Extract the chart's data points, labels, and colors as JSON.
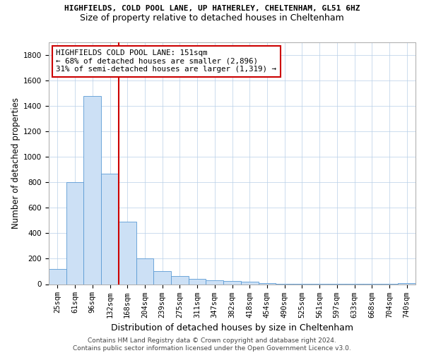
{
  "title_line1": "HIGHFIELDS, COLD POOL LANE, UP HATHERLEY, CHELTENHAM, GL51 6HZ",
  "title_line2": "Size of property relative to detached houses in Cheltenham",
  "xlabel": "Distribution of detached houses by size in Cheltenham",
  "ylabel": "Number of detached properties",
  "categories": [
    "25sqm",
    "61sqm",
    "96sqm",
    "132sqm",
    "168sqm",
    "204sqm",
    "239sqm",
    "275sqm",
    "311sqm",
    "347sqm",
    "382sqm",
    "418sqm",
    "454sqm",
    "490sqm",
    "525sqm",
    "561sqm",
    "597sqm",
    "633sqm",
    "668sqm",
    "704sqm",
    "740sqm"
  ],
  "values": [
    120,
    800,
    1480,
    870,
    490,
    205,
    100,
    65,
    40,
    28,
    25,
    18,
    8,
    5,
    3,
    2,
    2,
    2,
    1,
    2,
    10
  ],
  "bar_color": "#cce0f5",
  "bar_edge_color": "#5b9bd5",
  "vline_color": "#cc0000",
  "vline_x": 3.5,
  "ylim": [
    0,
    1900
  ],
  "yticks": [
    0,
    200,
    400,
    600,
    800,
    1000,
    1200,
    1400,
    1600,
    1800
  ],
  "annotation_box_text": "HIGHFIELDS COLD POOL LANE: 151sqm\n← 68% of detached houses are smaller (2,896)\n31% of semi-detached houses are larger (1,319) →",
  "annotation_box_color": "#cc0000",
  "footer_text": "Contains HM Land Registry data © Crown copyright and database right 2024.\nContains public sector information licensed under the Open Government Licence v3.0.",
  "background_color": "#ffffff",
  "grid_color": "#b8cfe8",
  "title1_fontsize": 8.0,
  "title2_fontsize": 9.0,
  "ylabel_fontsize": 8.5,
  "xlabel_fontsize": 9.0,
  "tick_fontsize": 7.5,
  "footer_fontsize": 6.5
}
